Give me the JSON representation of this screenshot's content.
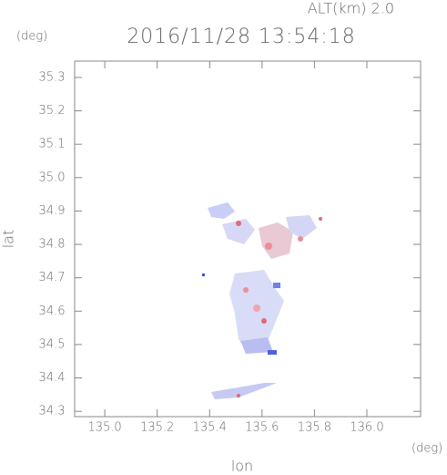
{
  "chart_data": {
    "type": "radar-map",
    "title": "2016/11/28 13:54:18",
    "subtitle": "ALT(km) 2.0",
    "y_unit": "(deg)",
    "x_unit": "(deg)",
    "ylabel": "lat",
    "xlabel": "lon",
    "xlim": [
      134.885,
      136.205
    ],
    "ylim": [
      34.284,
      35.349
    ],
    "xticks": [
      {
        "value": 135,
        "label": "135.0"
      },
      135.2,
      135.4,
      135.6,
      135.8,
      {
        "value": 136,
        "label": "136.0"
      }
    ],
    "yticks": [
      34.3,
      34.4,
      34.5,
      34.6,
      34.7,
      34.8,
      34.9,
      {
        "value": 35,
        "label": "35.0"
      },
      35.1,
      35.2,
      35.3
    ]
  }
}
